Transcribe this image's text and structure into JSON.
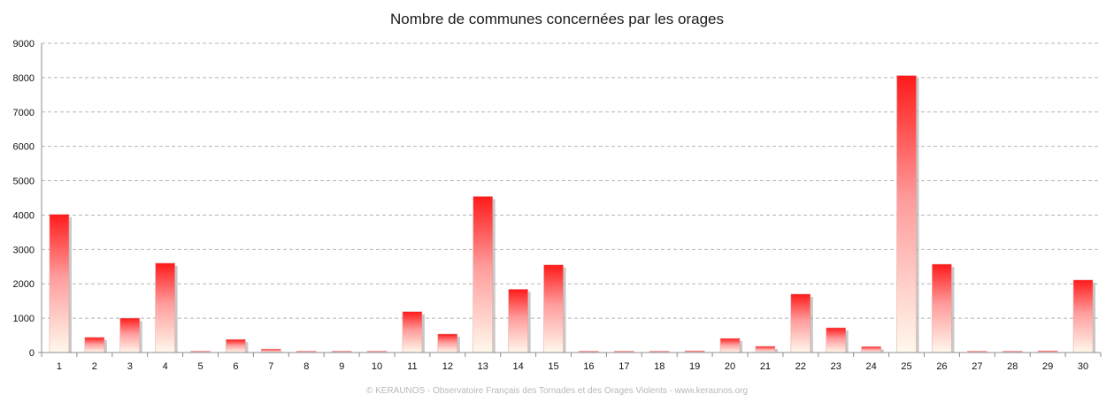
{
  "chart_data": {
    "type": "bar",
    "title": "Nombre de communes concernées par les orages",
    "xlabel": "",
    "ylabel": "",
    "categories": [
      "1",
      "2",
      "3",
      "4",
      "5",
      "6",
      "7",
      "8",
      "9",
      "10",
      "11",
      "12",
      "13",
      "14",
      "15",
      "16",
      "17",
      "18",
      "19",
      "20",
      "21",
      "22",
      "23",
      "24",
      "25",
      "26",
      "27",
      "28",
      "29",
      "30"
    ],
    "values": [
      4020,
      440,
      1000,
      2600,
      30,
      380,
      100,
      5,
      5,
      30,
      1190,
      540,
      4540,
      1840,
      2550,
      5,
      30,
      5,
      50,
      410,
      180,
      1700,
      720,
      170,
      8060,
      2570,
      5,
      5,
      50,
      2110
    ],
    "ylim": [
      0,
      9000
    ],
    "yticks": [
      0,
      1000,
      2000,
      3000,
      4000,
      5000,
      6000,
      7000,
      8000,
      9000
    ],
    "grid": true,
    "bar_color_top": "#ff1a1a",
    "bar_color_bottom": "#fff8ec",
    "footer": "© KERAUNOS - Observatoire Français des Tornades et des Orages Violents - www.keraunos.org"
  }
}
